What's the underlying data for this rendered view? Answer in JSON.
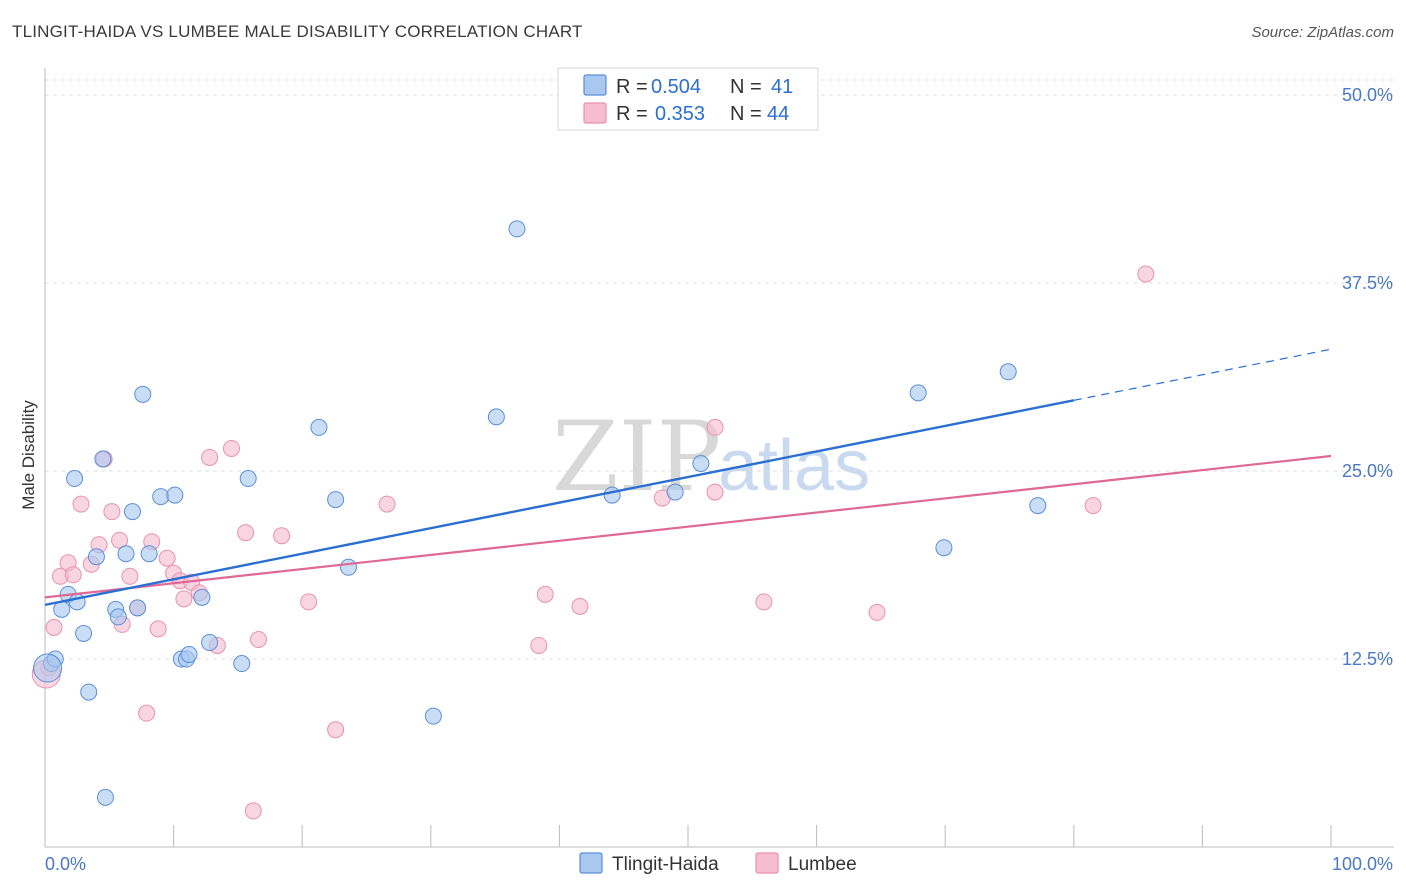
{
  "header": {
    "title": "TLINGIT-HAIDA VS LUMBEE MALE DISABILITY CORRELATION CHART",
    "source": "Source: ZipAtlas.com"
  },
  "watermark": {
    "zip": "ZIP",
    "atlas": "atlas"
  },
  "legend": {
    "rows": [
      {
        "r_label": "R = ",
        "r_value": "0.504",
        "n_label": "N = ",
        "n_value": "41",
        "color": "#a9c8f0"
      },
      {
        "r_label": "R = ",
        "r_value": "0.353",
        "n_label": "N = ",
        "n_value": "44",
        "color": "#f6bcd0"
      }
    ]
  },
  "bottom_legend": [
    "Tlingit-Haida",
    "Lumbee"
  ],
  "chart_data": {
    "type": "scatter",
    "title": "TLINGIT-HAIDA VS LUMBEE MALE DISABILITY CORRELATION CHART",
    "xlabel": "",
    "ylabel": "Male Disability",
    "xlim": [
      0,
      100
    ],
    "ylim": [
      0,
      51
    ],
    "x_tick_labels": [
      "0.0%",
      "100.0%"
    ],
    "y_ticks": [
      12.5,
      25.0,
      37.5,
      50.0
    ],
    "y_tick_labels": [
      "12.5%",
      "25.0%",
      "37.5%",
      "50.0%"
    ],
    "grid": true,
    "series": [
      {
        "name": "Tlingit-Haida",
        "color": "#a9c8f0",
        "stroke": "#5b8fd6",
        "line_color": "#2a6fd1",
        "trend": {
          "x0": 0,
          "y0": 16.1,
          "x1": 80,
          "y1": 29.7,
          "dash_to_x": 100,
          "dash_to_y": 33.1
        },
        "points": [
          [
            0.5,
            12.2
          ],
          [
            0.8,
            12.5
          ],
          [
            1.3,
            15.8
          ],
          [
            1.8,
            16.8
          ],
          [
            2.3,
            24.5
          ],
          [
            2.5,
            16.3
          ],
          [
            3.0,
            14.2
          ],
          [
            3.4,
            10.3
          ],
          [
            4.0,
            19.3
          ],
          [
            4.5,
            25.8
          ],
          [
            4.7,
            3.3
          ],
          [
            5.5,
            15.8
          ],
          [
            5.7,
            15.3
          ],
          [
            6.3,
            19.5
          ],
          [
            6.8,
            22.3
          ],
          [
            7.2,
            15.9
          ],
          [
            7.6,
            30.1
          ],
          [
            8.1,
            19.5
          ],
          [
            9.0,
            23.3
          ],
          [
            10.1,
            23.4
          ],
          [
            10.6,
            12.5
          ],
          [
            11.0,
            12.5
          ],
          [
            11.2,
            12.8
          ],
          [
            12.2,
            16.6
          ],
          [
            12.8,
            13.6
          ],
          [
            15.3,
            12.2
          ],
          [
            15.8,
            24.5
          ],
          [
            21.3,
            27.9
          ],
          [
            22.6,
            23.1
          ],
          [
            23.6,
            18.6
          ],
          [
            30.2,
            8.7
          ],
          [
            35.1,
            28.6
          ],
          [
            36.7,
            41.1
          ],
          [
            44.1,
            23.4
          ],
          [
            49.0,
            23.6
          ],
          [
            51.0,
            25.5
          ],
          [
            67.9,
            30.2
          ],
          [
            69.9,
            19.9
          ],
          [
            74.9,
            31.6
          ],
          [
            77.2,
            22.7
          ],
          [
            0.2,
            11.9
          ]
        ]
      },
      {
        "name": "Lumbee",
        "color": "#f6bcd0",
        "stroke": "#e891b0",
        "line_color": "#e06894",
        "trend": {
          "x0": 0,
          "y0": 16.6,
          "x1": 100,
          "y1": 26.0
        },
        "points": [
          [
            0.3,
            11.9
          ],
          [
            0.7,
            14.6
          ],
          [
            1.2,
            18.0
          ],
          [
            1.8,
            18.9
          ],
          [
            2.2,
            18.1
          ],
          [
            2.8,
            22.8
          ],
          [
            3.6,
            18.8
          ],
          [
            4.2,
            20.1
          ],
          [
            4.6,
            25.8
          ],
          [
            5.2,
            22.3
          ],
          [
            5.8,
            20.4
          ],
          [
            6.0,
            14.8
          ],
          [
            6.6,
            18.0
          ],
          [
            7.2,
            15.9
          ],
          [
            7.9,
            8.9
          ],
          [
            8.3,
            20.3
          ],
          [
            8.8,
            14.5
          ],
          [
            9.5,
            19.2
          ],
          [
            10.0,
            18.2
          ],
          [
            10.5,
            17.7
          ],
          [
            10.8,
            16.5
          ],
          [
            11.4,
            17.6
          ],
          [
            12.0,
            16.9
          ],
          [
            12.8,
            25.9
          ],
          [
            13.4,
            13.4
          ],
          [
            14.5,
            26.5
          ],
          [
            15.6,
            20.9
          ],
          [
            16.2,
            2.4
          ],
          [
            16.6,
            13.8
          ],
          [
            18.4,
            20.7
          ],
          [
            20.5,
            16.3
          ],
          [
            22.6,
            7.8
          ],
          [
            26.6,
            22.8
          ],
          [
            38.4,
            13.4
          ],
          [
            38.9,
            16.8
          ],
          [
            41.6,
            16.0
          ],
          [
            48.0,
            23.2
          ],
          [
            52.1,
            23.6
          ],
          [
            52.1,
            27.9
          ],
          [
            55.9,
            16.3
          ],
          [
            64.7,
            15.6
          ],
          [
            81.5,
            22.7
          ],
          [
            85.6,
            38.1
          ],
          [
            0.1,
            11.5
          ]
        ]
      }
    ]
  }
}
